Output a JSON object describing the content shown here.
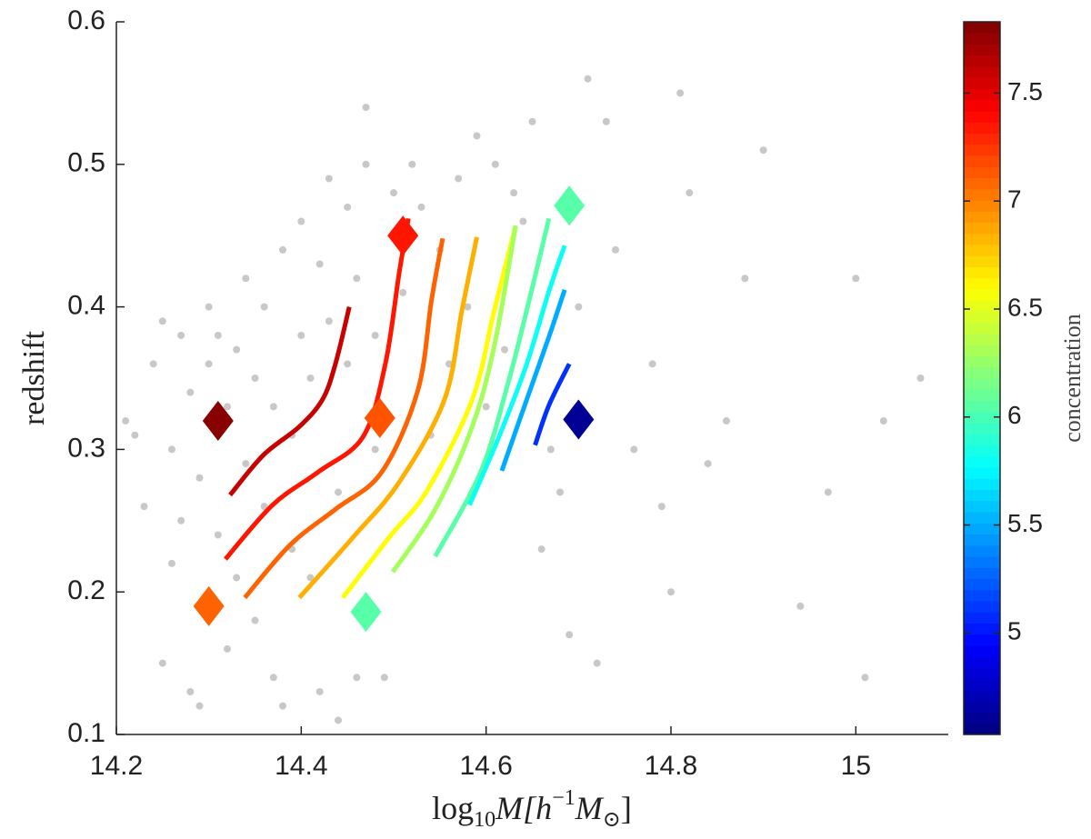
{
  "chart_data": {
    "type": "scatter",
    "xlabel": [
      "log",
      "10",
      "M",
      "[h",
      "−1",
      "M",
      "⊙",
      "]"
    ],
    "ylabel": "redshift",
    "xlim": [
      14.2,
      15.1
    ],
    "ylim": [
      0.1,
      0.6
    ],
    "xticks": [
      14.2,
      14.4,
      14.6,
      14.8,
      15
    ],
    "yticks": [
      0.1,
      0.2,
      0.3,
      0.4,
      0.5,
      0.6
    ],
    "points": {
      "color": "#c8c8c8",
      "x": [
        14.21,
        14.22,
        14.23,
        14.24,
        14.25,
        14.25,
        14.26,
        14.26,
        14.27,
        14.27,
        14.28,
        14.28,
        14.29,
        14.29,
        14.3,
        14.3,
        14.31,
        14.31,
        14.32,
        14.32,
        14.33,
        14.33,
        14.34,
        14.34,
        14.35,
        14.35,
        14.36,
        14.36,
        14.37,
        14.37,
        14.38,
        14.38,
        14.39,
        14.39,
        14.4,
        14.4,
        14.41,
        14.41,
        14.42,
        14.42,
        14.43,
        14.43,
        14.44,
        14.44,
        14.45,
        14.45,
        14.46,
        14.46,
        14.47,
        14.47,
        14.48,
        14.48,
        14.49,
        14.5,
        14.51,
        14.52,
        14.53,
        14.54,
        14.55,
        14.56,
        14.57,
        14.58,
        14.59,
        14.6,
        14.61,
        14.62,
        14.63,
        14.64,
        14.65,
        14.66,
        14.67,
        14.68,
        14.69,
        14.7,
        14.71,
        14.72,
        14.73,
        14.74,
        14.76,
        14.78,
        14.79,
        14.8,
        14.81,
        14.82,
        14.84,
        14.86,
        14.88,
        14.9,
        14.94,
        14.97,
        15.0,
        15.01,
        15.03,
        15.07
      ],
      "y": [
        0.32,
        0.31,
        0.26,
        0.36,
        0.39,
        0.15,
        0.22,
        0.3,
        0.25,
        0.38,
        0.13,
        0.34,
        0.12,
        0.28,
        0.4,
        0.36,
        0.24,
        0.38,
        0.16,
        0.33,
        0.37,
        0.21,
        0.42,
        0.29,
        0.35,
        0.18,
        0.4,
        0.26,
        0.33,
        0.14,
        0.44,
        0.12,
        0.31,
        0.23,
        0.46,
        0.38,
        0.35,
        0.21,
        0.43,
        0.13,
        0.49,
        0.39,
        0.27,
        0.11,
        0.47,
        0.36,
        0.42,
        0.14,
        0.54,
        0.5,
        0.38,
        0.3,
        0.14,
        0.48,
        0.41,
        0.5,
        0.47,
        0.31,
        0.44,
        0.36,
        0.49,
        0.4,
        0.52,
        0.33,
        0.5,
        0.37,
        0.48,
        0.46,
        0.53,
        0.23,
        0.3,
        0.27,
        0.17,
        0.4,
        0.56,
        0.15,
        0.53,
        0.44,
        0.3,
        0.36,
        0.26,
        0.2,
        0.55,
        0.48,
        0.29,
        0.32,
        0.42,
        0.51,
        0.19,
        0.27,
        0.42,
        0.14,
        0.32,
        0.35
      ]
    },
    "contours": [
      {
        "level": 7.6,
        "x": [
          14.323,
          14.359,
          14.398,
          14.423,
          14.437,
          14.452
        ],
        "y": [
          0.268,
          0.296,
          0.316,
          0.335,
          0.36,
          0.4
        ]
      },
      {
        "level": 7.35,
        "x": [
          14.318,
          14.369,
          14.418,
          14.467,
          14.491,
          14.506,
          14.516
        ],
        "y": [
          0.223,
          0.261,
          0.284,
          0.309,
          0.36,
          0.424,
          0.462
        ]
      },
      {
        "level": 7.1,
        "x": [
          14.339,
          14.388,
          14.437,
          14.487,
          14.526,
          14.541,
          14.553
        ],
        "y": [
          0.196,
          0.233,
          0.258,
          0.284,
          0.341,
          0.405,
          0.448
        ]
      },
      {
        "level": 6.85,
        "x": [
          14.398,
          14.457,
          14.506,
          14.555,
          14.574,
          14.59
        ],
        "y": [
          0.196,
          0.239,
          0.277,
          0.335,
          0.398,
          0.449
        ]
      },
      {
        "level": 6.6,
        "x": [
          14.445,
          14.496,
          14.536,
          14.585,
          14.609,
          14.632
        ],
        "y": [
          0.196,
          0.239,
          0.271,
          0.335,
          0.398,
          0.457
        ]
      },
      {
        "level": 6.3,
        "x": [
          14.499,
          14.545,
          14.585,
          14.609,
          14.632
        ],
        "y": [
          0.214,
          0.258,
          0.316,
          0.373,
          0.457
        ]
      },
      {
        "level": 6.05,
        "x": [
          14.545,
          14.594,
          14.624,
          14.649,
          14.668
        ],
        "y": [
          0.225,
          0.284,
          0.347,
          0.411,
          0.462
        ]
      },
      {
        "level": 5.8,
        "x": [
          14.582,
          14.614,
          14.644,
          14.668,
          14.685
        ],
        "y": [
          0.261,
          0.309,
          0.36,
          0.411,
          0.443
        ]
      },
      {
        "level": 5.5,
        "x": [
          14.617,
          14.644,
          14.668,
          14.685
        ],
        "y": [
          0.285,
          0.335,
          0.379,
          0.412
        ]
      },
      {
        "level": 5.1,
        "x": [
          14.653,
          14.668,
          14.69
        ],
        "y": [
          0.303,
          0.331,
          0.36
        ]
      }
    ],
    "markers": {
      "x": [
        14.31,
        14.3,
        14.51,
        14.485,
        14.47,
        14.69,
        14.7
      ],
      "y": [
        0.32,
        0.19,
        0.45,
        0.322,
        0.186,
        0.471,
        0.321
      ],
      "c": [
        7.8,
        7.1,
        7.35,
        7.15,
        6.05,
        6.05,
        4.6
      ]
    },
    "colorbar": {
      "label": "concentration",
      "colormap": "jet",
      "clim": [
        4.53,
        7.83
      ],
      "ticks": [
        5,
        5.5,
        6,
        6.5,
        7,
        7.5
      ]
    }
  }
}
